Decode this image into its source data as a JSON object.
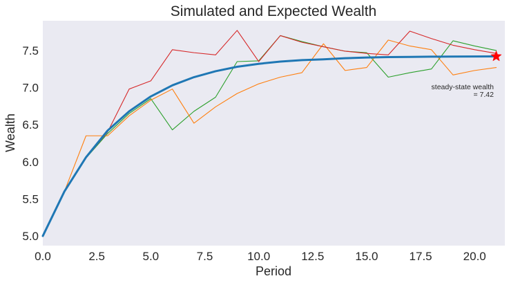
{
  "chart_data": {
    "type": "line",
    "title": "Simulated and Expected Wealth",
    "xlabel": "Period",
    "ylabel": "Wealth",
    "xlim": [
      0,
      21.4
    ],
    "ylim": [
      4.87,
      7.9
    ],
    "xticks": [
      0.0,
      2.5,
      5.0,
      7.5,
      10.0,
      12.5,
      15.0,
      17.5,
      20.0
    ],
    "xtick_labels": [
      "0.0",
      "2.5",
      "5.0",
      "7.5",
      "10.0",
      "12.5",
      "15.0",
      "17.5",
      "20.0"
    ],
    "yticks": [
      5.0,
      5.5,
      6.0,
      6.5,
      7.0,
      7.5
    ],
    "ytick_labels": [
      "5.0",
      "5.5",
      "6.0",
      "6.5",
      "7.0",
      "7.5"
    ],
    "grid": false,
    "background": "#eaeaf2",
    "x": [
      0,
      1,
      2,
      3,
      4,
      5,
      6,
      7,
      8,
      9,
      10,
      11,
      12,
      13,
      14,
      15,
      16,
      17,
      18,
      19,
      20,
      21
    ],
    "series": [
      {
        "color": "#2ca02c",
        "width": 1.1,
        "values": [
          5.0,
          5.6,
          6.05,
          6.38,
          6.65,
          6.85,
          6.43,
          6.68,
          6.87,
          7.35,
          7.36,
          7.7,
          7.62,
          7.55,
          7.49,
          7.47,
          7.14,
          7.2,
          7.25,
          7.63,
          7.56,
          7.5
        ]
      },
      {
        "color": "#ff7f0e",
        "width": 1.1,
        "values": [
          5.0,
          5.6,
          6.35,
          6.35,
          6.62,
          6.83,
          6.98,
          6.52,
          6.74,
          6.92,
          7.05,
          7.14,
          7.2,
          7.59,
          7.23,
          7.27,
          7.64,
          7.56,
          7.51,
          7.17,
          7.23,
          7.27
        ]
      },
      {
        "color": "#d62728",
        "width": 1.1,
        "values": [
          5.0,
          5.6,
          6.05,
          6.4,
          6.98,
          7.09,
          7.51,
          7.47,
          7.44,
          7.77,
          7.35,
          7.7,
          7.61,
          7.55,
          7.49,
          7.46,
          7.44,
          7.76,
          7.66,
          7.57,
          7.51,
          7.46
        ]
      },
      {
        "color": "#1f77b4",
        "width": 3,
        "values": [
          5.0,
          5.6,
          6.06,
          6.42,
          6.68,
          6.88,
          7.03,
          7.14,
          7.22,
          7.28,
          7.32,
          7.35,
          7.37,
          7.38,
          7.395,
          7.405,
          7.41,
          7.413,
          7.416,
          7.418,
          7.419,
          7.42
        ]
      }
    ],
    "steady_state": {
      "x": 21,
      "y": 7.42,
      "marker": "star",
      "color": "#ff0000"
    },
    "annotation": {
      "line1": "steady-state wealth",
      "line2": "= 7.42"
    }
  }
}
